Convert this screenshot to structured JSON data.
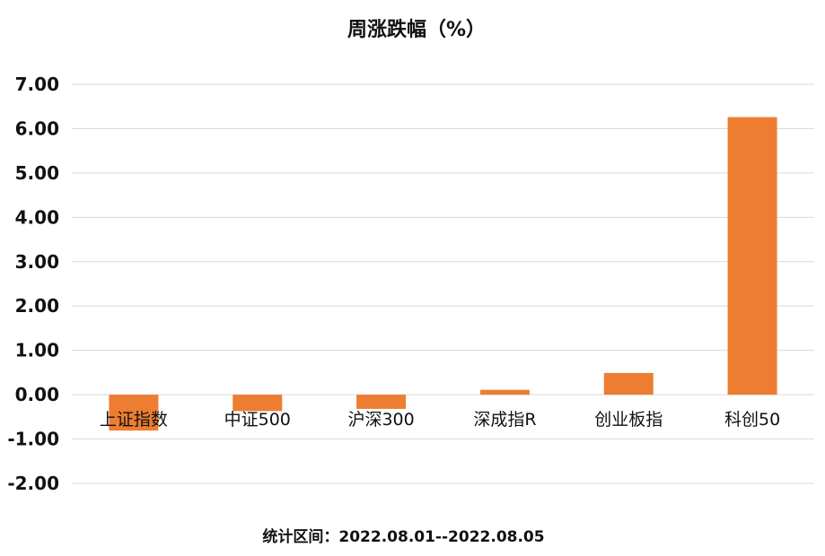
{
  "chart_data": {
    "type": "bar",
    "title": "周涨跌幅（%）",
    "categories": [
      "上证指数",
      "中证500",
      "沪深300",
      "深成指R",
      "创业板指",
      "科创50"
    ],
    "values": [
      -0.81,
      -0.37,
      -0.32,
      0.11,
      0.49,
      6.26
    ],
    "ylim": [
      -2.0,
      7.0
    ],
    "yticks": [
      "7.00",
      "6.00",
      "5.00",
      "4.00",
      "3.00",
      "2.00",
      "1.00",
      "0.00",
      "-1.00",
      "-2.00"
    ],
    "grid": true,
    "bar_color": "#ED7D31"
  },
  "footnote": "统计区间：2022.08.01--2022.08.05"
}
